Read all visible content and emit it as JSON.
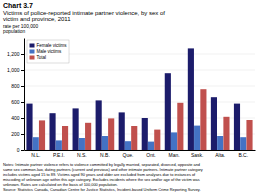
{
  "chart_data": {
    "type": "bar",
    "title": "Chart 3.7",
    "subtitle": "Victims of police-reported intimate partner violence, by sex of\nvictim and province, 2011",
    "y_label": "rate per 100,000\npopulation",
    "categories": [
      "N.L.",
      "P.E.I.",
      "N.S.",
      "N.B.",
      "Que.",
      "Ont.",
      "Man.",
      "Sask.",
      "Alta.",
      "B.C."
    ],
    "series": [
      {
        "name": "Female victims",
        "color": "#1c1c6b",
        "values": [
          580,
          460,
          520,
          620,
          470,
          400,
          960,
          1270,
          660,
          580
        ]
      },
      {
        "name": "Male victims",
        "color": "#4472c4",
        "values": [
          160,
          120,
          150,
          175,
          110,
          105,
          220,
          305,
          175,
          160
        ]
      },
      {
        "name": "Total",
        "color": "#c0504d",
        "values": [
          370,
          300,
          340,
          395,
          300,
          255,
          590,
          760,
          415,
          375
        ]
      }
    ],
    "ylim": [
      0,
      1400
    ],
    "yticks": [
      0,
      200,
      400,
      600,
      800,
      {
        "value": 1000,
        "label": "1,000"
      },
      {
        "value": 1200,
        "label": "1,200"
      }
    ],
    "grid": true,
    "legend": "upper left",
    "annotations": [
      "Notes: Intimate partner violence refers to violence committed by legally married, separated, divorced, opposite and",
      "same sex common-law, dating partners (current and previous) and other intimate partners. Intimate partner category",
      "includes victims aged 15 to 89. Victims aged 90 years and older are excluded from analyses due to instances of",
      "miscoding of unknown age within this age category. Excludes incidents where the sex and/or age of the victim was",
      "unknown. Rates are calculated on the basis of 100,000 population.",
      "Source: Statistics Canada, Canadian Centre for Justice Statistics, Incident-based Uniform Crime Reporting Survey."
    ]
  }
}
